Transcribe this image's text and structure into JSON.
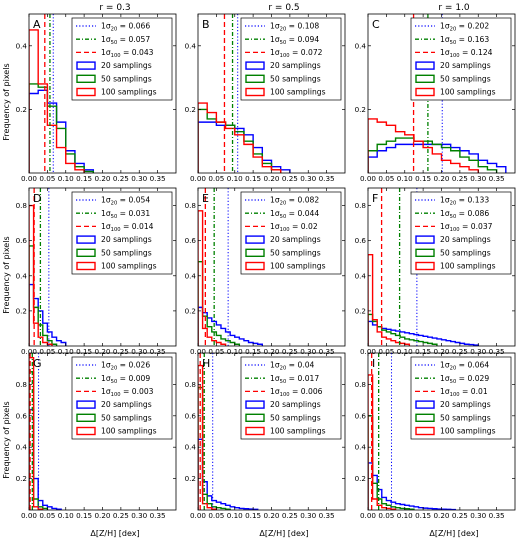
{
  "figure": {
    "col_titles": [
      "r = 0.3",
      "r = 0.5",
      "r = 1.0"
    ],
    "xlabel": "Δ[Z/H] [dex]",
    "ylabel": "Frequency of pixels"
  },
  "colors": {
    "s20": "#0000ff",
    "s50": "#008000",
    "s100": "#ff0000"
  },
  "chart_data": [
    {
      "type": "bar",
      "label": "A",
      "row": 0,
      "col": 0,
      "xlim": [
        0,
        0.4
      ],
      "ylim": [
        0,
        0.5
      ],
      "xticks": [
        "0.00",
        "0.05",
        "0.10",
        "0.15",
        "0.20",
        "0.25",
        "0.30",
        "0.35"
      ],
      "yticks": [
        "0.2",
        "0.4"
      ],
      "bin_width": 0.025,
      "legend_placement": "top-right",
      "sigma_lines": [
        {
          "sym": "1σ",
          "sub": "20",
          "value": 0.066,
          "text": "= 0.066",
          "color": "#0000ff",
          "style": "dotted"
        },
        {
          "sym": "1σ",
          "sub": "50",
          "value": 0.057,
          "text": "= 0.057",
          "color": "#008000",
          "style": "dashdot"
        },
        {
          "sym": "1σ",
          "sub": "100",
          "value": 0.043,
          "text": "= 0.043",
          "color": "#ff0000",
          "style": "dashed"
        }
      ],
      "series": [
        {
          "name": "20 samplings",
          "color": "#0000ff",
          "values": [
            0.25,
            0.26,
            0.22,
            0.16,
            0.07,
            0.03,
            0.01
          ]
        },
        {
          "name": "50 samplings",
          "color": "#008000",
          "values": [
            0.28,
            0.27,
            0.21,
            0.14,
            0.06,
            0.02,
            0.005
          ]
        },
        {
          "name": "100 samplings",
          "color": "#ff0000",
          "values": [
            0.45,
            0.28,
            0.15,
            0.08,
            0.03,
            0.01
          ]
        }
      ]
    },
    {
      "type": "bar",
      "label": "B",
      "row": 0,
      "col": 1,
      "xlim": [
        0,
        0.4
      ],
      "ylim": [
        0,
        0.5
      ],
      "xticks": [
        "0.00",
        "0.05",
        "0.10",
        "0.15",
        "0.20",
        "0.25",
        "0.30",
        "0.35"
      ],
      "yticks": [
        "0.2",
        "0.4"
      ],
      "bin_width": 0.025,
      "legend_placement": "top-right",
      "sigma_lines": [
        {
          "sym": "1σ",
          "sub": "20",
          "value": 0.108,
          "text": "= 0.108",
          "color": "#0000ff",
          "style": "dotted"
        },
        {
          "sym": "1σ",
          "sub": "50",
          "value": 0.094,
          "text": "= 0.094",
          "color": "#008000",
          "style": "dashdot"
        },
        {
          "sym": "1σ",
          "sub": "100",
          "value": 0.072,
          "text": "= 0.072",
          "color": "#ff0000",
          "style": "dashed"
        }
      ],
      "series": [
        {
          "name": "20 samplings",
          "color": "#0000ff",
          "values": [
            0.16,
            0.16,
            0.15,
            0.15,
            0.14,
            0.12,
            0.08,
            0.04,
            0.02,
            0.01
          ]
        },
        {
          "name": "50 samplings",
          "color": "#008000",
          "values": [
            0.2,
            0.17,
            0.16,
            0.15,
            0.13,
            0.1,
            0.06,
            0.03,
            0.01
          ]
        },
        {
          "name": "100 samplings",
          "color": "#ff0000",
          "values": [
            0.22,
            0.19,
            0.16,
            0.14,
            0.12,
            0.09,
            0.05,
            0.02,
            0.01
          ]
        }
      ]
    },
    {
      "type": "bar",
      "label": "C",
      "row": 0,
      "col": 2,
      "xlim": [
        0,
        0.4
      ],
      "ylim": [
        0,
        0.5
      ],
      "xticks": [
        "0.00",
        "0.05",
        "0.10",
        "0.15",
        "0.20",
        "0.25",
        "0.30",
        "0.35"
      ],
      "yticks": [
        "0.2",
        "0.4"
      ],
      "bin_width": 0.025,
      "legend_placement": "top-right",
      "sigma_lines": [
        {
          "sym": "1σ",
          "sub": "20",
          "value": 0.202,
          "text": "= 0.202",
          "color": "#0000ff",
          "style": "dotted"
        },
        {
          "sym": "1σ",
          "sub": "50",
          "value": 0.163,
          "text": "= 0.163",
          "color": "#008000",
          "style": "dashdot"
        },
        {
          "sym": "1σ",
          "sub": "100",
          "value": 0.124,
          "text": "= 0.124",
          "color": "#ff0000",
          "style": "dashed"
        }
      ],
      "series": [
        {
          "name": "20 samplings",
          "color": "#0000ff",
          "values": [
            0.05,
            0.07,
            0.08,
            0.09,
            0.09,
            0.09,
            0.09,
            0.09,
            0.09,
            0.08,
            0.07,
            0.06,
            0.04,
            0.03,
            0.02
          ]
        },
        {
          "name": "50 samplings",
          "color": "#008000",
          "values": [
            0.07,
            0.09,
            0.1,
            0.11,
            0.11,
            0.1,
            0.1,
            0.09,
            0.08,
            0.07,
            0.05,
            0.04,
            0.02,
            0.01
          ]
        },
        {
          "name": "100 samplings",
          "color": "#ff0000",
          "values": [
            0.17,
            0.16,
            0.15,
            0.13,
            0.12,
            0.1,
            0.08,
            0.06,
            0.04,
            0.03,
            0.02,
            0.01
          ]
        }
      ]
    },
    {
      "type": "bar",
      "label": "D",
      "row": 1,
      "col": 0,
      "xlim": [
        0,
        0.4
      ],
      "ylim": [
        0,
        0.9
      ],
      "xticks": [
        "0.00",
        "0.05",
        "0.10",
        "0.15",
        "0.20",
        "0.25",
        "0.30",
        "0.35"
      ],
      "yticks": [
        "0.2",
        "0.4",
        "0.6",
        "0.8"
      ],
      "bin_width": 0.0125,
      "legend_placement": "top-right",
      "sigma_lines": [
        {
          "sym": "1σ",
          "sub": "20",
          "value": 0.054,
          "text": "= 0.054",
          "color": "#0000ff",
          "style": "dotted"
        },
        {
          "sym": "1σ",
          "sub": "50",
          "value": 0.031,
          "text": "= 0.031",
          "color": "#008000",
          "style": "dashdot"
        },
        {
          "sym": "1σ",
          "sub": "100",
          "value": 0.014,
          "text": "= 0.014",
          "color": "#ff0000",
          "style": "dashed"
        }
      ],
      "series": [
        {
          "name": "20 samplings",
          "color": "#0000ff",
          "values": [
            0.35,
            0.27,
            0.2,
            0.13,
            0.08,
            0.05,
            0.03,
            0.02
          ]
        },
        {
          "name": "50 samplings",
          "color": "#008000",
          "values": [
            0.57,
            0.22,
            0.12,
            0.06,
            0.03,
            0.01
          ]
        },
        {
          "name": "100 samplings",
          "color": "#ff0000",
          "values": [
            0.8,
            0.13,
            0.05,
            0.02,
            0.01
          ]
        }
      ]
    },
    {
      "type": "bar",
      "label": "E",
      "row": 1,
      "col": 1,
      "xlim": [
        0,
        0.4
      ],
      "ylim": [
        0,
        0.9
      ],
      "xticks": [
        "0.00",
        "0.05",
        "0.10",
        "0.15",
        "0.20",
        "0.25",
        "0.30",
        "0.35"
      ],
      "yticks": [
        "0.2",
        "0.4",
        "0.6",
        "0.8"
      ],
      "bin_width": 0.0125,
      "legend_placement": "top-right",
      "sigma_lines": [
        {
          "sym": "1σ",
          "sub": "20",
          "value": 0.082,
          "text": "= 0.082",
          "color": "#0000ff",
          "style": "dotted"
        },
        {
          "sym": "1σ",
          "sub": "50",
          "value": 0.044,
          "text": "= 0.044",
          "color": "#008000",
          "style": "dashdot"
        },
        {
          "sym": "1σ",
          "sub": "100",
          "value": 0.02,
          "text": "= 0.02",
          "color": "#ff0000",
          "style": "dashed"
        }
      ],
      "series": [
        {
          "name": "20 samplings",
          "color": "#0000ff",
          "values": [
            0.22,
            0.19,
            0.16,
            0.14,
            0.12,
            0.1,
            0.08,
            0.06,
            0.05,
            0.04,
            0.03,
            0.02,
            0.015,
            0.01
          ]
        },
        {
          "name": "50 samplings",
          "color": "#008000",
          "values": [
            0.48,
            0.17,
            0.11,
            0.08,
            0.06,
            0.04,
            0.03,
            0.02,
            0.01
          ]
        },
        {
          "name": "100 samplings",
          "color": "#ff0000",
          "values": [
            0.77,
            0.1,
            0.05,
            0.03,
            0.02,
            0.01
          ]
        }
      ]
    },
    {
      "type": "bar",
      "label": "F",
      "row": 1,
      "col": 2,
      "xlim": [
        0,
        0.4
      ],
      "ylim": [
        0,
        0.9
      ],
      "xticks": [
        "0.00",
        "0.05",
        "0.10",
        "0.15",
        "0.20",
        "0.25",
        "0.30",
        "0.35"
      ],
      "yticks": [
        "0.2",
        "0.4",
        "0.6",
        "0.8"
      ],
      "bin_width": 0.0125,
      "legend_placement": "top-right",
      "sigma_lines": [
        {
          "sym": "1σ",
          "sub": "20",
          "value": 0.133,
          "text": "= 0.133",
          "color": "#0000ff",
          "style": "dotted"
        },
        {
          "sym": "1σ",
          "sub": "50",
          "value": 0.086,
          "text": "= 0.086",
          "color": "#008000",
          "style": "dashdot"
        },
        {
          "sym": "1σ",
          "sub": "100",
          "value": 0.037,
          "text": "= 0.037",
          "color": "#ff0000",
          "style": "dashed"
        }
      ],
      "series": [
        {
          "name": "20 samplings",
          "color": "#0000ff",
          "values": [
            0.14,
            0.12,
            0.11,
            0.1,
            0.095,
            0.09,
            0.085,
            0.08,
            0.075,
            0.07,
            0.065,
            0.06,
            0.055,
            0.05,
            0.045,
            0.04,
            0.035,
            0.03,
            0.025,
            0.02,
            0.015,
            0.01,
            0.008,
            0.005
          ]
        },
        {
          "name": "50 samplings",
          "color": "#008000",
          "values": [
            0.18,
            0.14,
            0.11,
            0.09,
            0.08,
            0.07,
            0.06,
            0.05,
            0.04,
            0.035,
            0.03,
            0.025,
            0.02,
            0.015,
            0.01
          ]
        },
        {
          "name": "100 samplings",
          "color": "#ff0000",
          "values": [
            0.52,
            0.15,
            0.08,
            0.05,
            0.04,
            0.03,
            0.02,
            0.015,
            0.01
          ]
        }
      ]
    },
    {
      "type": "bar",
      "label": "G",
      "row": 2,
      "col": 0,
      "xlim": [
        0,
        0.4
      ],
      "ylim": [
        0,
        1.0
      ],
      "xticks": [
        "0.00",
        "0.05",
        "0.10",
        "0.15",
        "0.20",
        "0.25",
        "0.30",
        "0.35"
      ],
      "yticks": [
        "0.2",
        "0.4",
        "0.6",
        "0.8"
      ],
      "bin_width": 0.0125,
      "legend_placement": "top-right",
      "sigma_lines": [
        {
          "sym": "1σ",
          "sub": "20",
          "value": 0.026,
          "text": "= 0.026",
          "color": "#0000ff",
          "style": "dotted"
        },
        {
          "sym": "1σ",
          "sub": "50",
          "value": 0.009,
          "text": "= 0.009",
          "color": "#008000",
          "style": "dashdot"
        },
        {
          "sym": "1σ",
          "sub": "100",
          "value": 0.003,
          "text": "= 0.003",
          "color": "#ff0000",
          "style": "dashed"
        }
      ],
      "series": [
        {
          "name": "20 samplings",
          "color": "#0000ff",
          "values": [
            0.64,
            0.2,
            0.06,
            0.03,
            0.02,
            0.01,
            0.005
          ]
        },
        {
          "name": "50 samplings",
          "color": "#008000",
          "values": [
            0.88,
            0.07,
            0.02,
            0.01
          ]
        },
        {
          "name": "100 samplings",
          "color": "#ff0000",
          "values": [
            0.97,
            0.02,
            0.005
          ]
        }
      ]
    },
    {
      "type": "bar",
      "label": "H",
      "row": 2,
      "col": 1,
      "xlim": [
        0,
        0.4
      ],
      "ylim": [
        0,
        1.0
      ],
      "xticks": [
        "0.00",
        "0.05",
        "0.10",
        "0.15",
        "0.20",
        "0.25",
        "0.30",
        "0.35"
      ],
      "yticks": [
        "0.2",
        "0.4",
        "0.6",
        "0.8"
      ],
      "bin_width": 0.0125,
      "legend_placement": "top-right",
      "sigma_lines": [
        {
          "sym": "1σ",
          "sub": "20",
          "value": 0.04,
          "text": "= 0.04",
          "color": "#0000ff",
          "style": "dotted"
        },
        {
          "sym": "1σ",
          "sub": "50",
          "value": 0.017,
          "text": "= 0.017",
          "color": "#008000",
          "style": "dashdot"
        },
        {
          "sym": "1σ",
          "sub": "100",
          "value": 0.006,
          "text": "= 0.006",
          "color": "#ff0000",
          "style": "dashed"
        }
      ],
      "series": [
        {
          "name": "20 samplings",
          "color": "#0000ff",
          "values": [
            0.45,
            0.18,
            0.09,
            0.06,
            0.05,
            0.04,
            0.03,
            0.02,
            0.015,
            0.01,
            0.008,
            0.006,
            0.004
          ]
        },
        {
          "name": "50 samplings",
          "color": "#008000",
          "values": [
            0.78,
            0.1,
            0.04,
            0.02,
            0.015,
            0.01,
            0.005
          ]
        },
        {
          "name": "100 samplings",
          "color": "#ff0000",
          "values": [
            0.92,
            0.04,
            0.015,
            0.005
          ]
        }
      ]
    },
    {
      "type": "bar",
      "label": "I",
      "row": 2,
      "col": 2,
      "xlim": [
        0,
        0.4
      ],
      "ylim": [
        0,
        1.0
      ],
      "xticks": [
        "0.00",
        "0.05",
        "0.10",
        "0.15",
        "0.20",
        "0.25",
        "0.30",
        "0.35"
      ],
      "yticks": [
        "0.2",
        "0.4",
        "0.6",
        "0.8"
      ],
      "bin_width": 0.0125,
      "legend_placement": "top-right",
      "sigma_lines": [
        {
          "sym": "1σ",
          "sub": "20",
          "value": 0.064,
          "text": "= 0.064",
          "color": "#0000ff",
          "style": "dotted"
        },
        {
          "sym": "1σ",
          "sub": "50",
          "value": 0.029,
          "text": "= 0.029",
          "color": "#008000",
          "style": "dashdot"
        },
        {
          "sym": "1σ",
          "sub": "100",
          "value": 0.01,
          "text": "= 0.01",
          "color": "#ff0000",
          "style": "dashed"
        }
      ],
      "series": [
        {
          "name": "20 samplings",
          "color": "#0000ff",
          "values": [
            0.3,
            0.22,
            0.13,
            0.08,
            0.06,
            0.05,
            0.04,
            0.035,
            0.03,
            0.025,
            0.02,
            0.015,
            0.012,
            0.01,
            0.008,
            0.006,
            0.005,
            0.004,
            0.003
          ]
        },
        {
          "name": "50 samplings",
          "color": "#008000",
          "values": [
            0.6,
            0.17,
            0.07,
            0.04,
            0.03,
            0.02,
            0.015,
            0.01,
            0.008,
            0.005
          ]
        },
        {
          "name": "100 samplings",
          "color": "#ff0000",
          "values": [
            0.86,
            0.07,
            0.03,
            0.015,
            0.01,
            0.005
          ]
        }
      ]
    }
  ]
}
